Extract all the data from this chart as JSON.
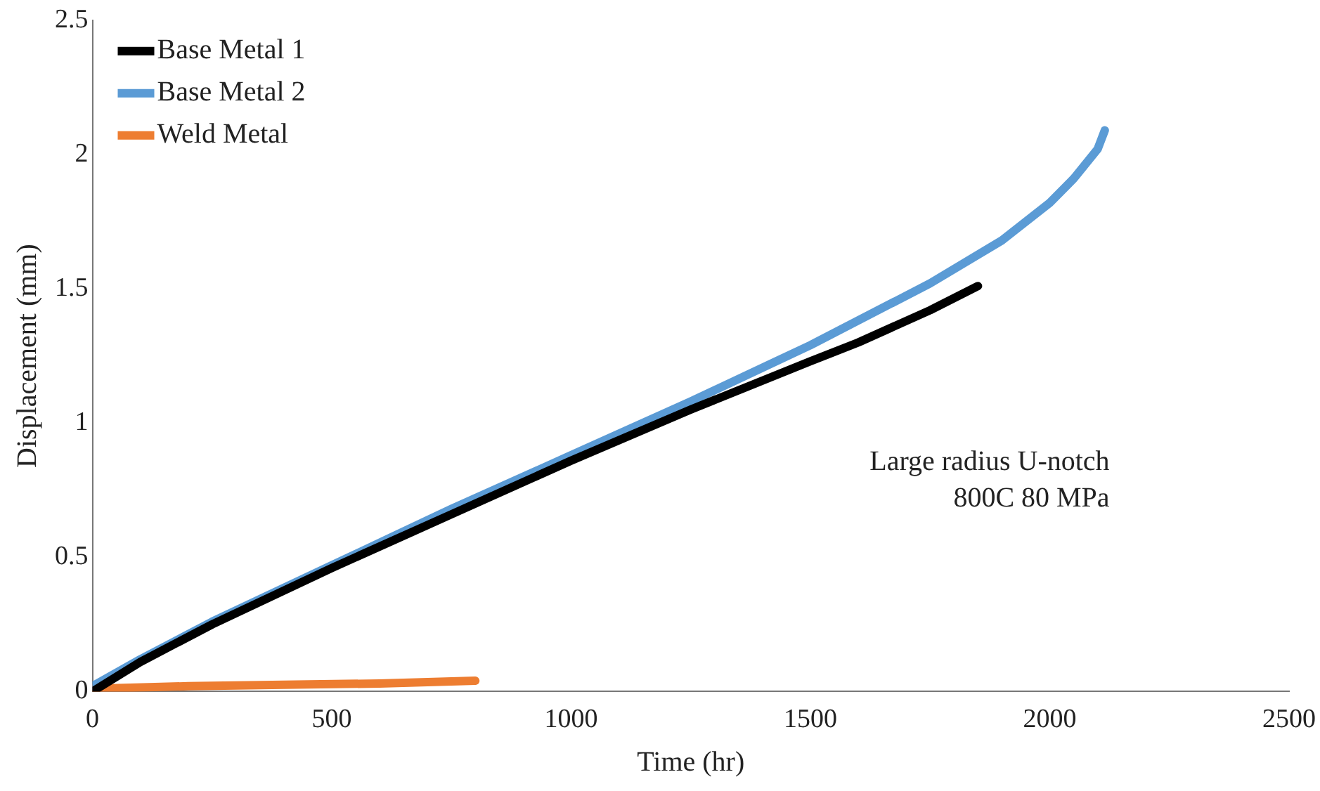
{
  "chart_data": {
    "type": "line",
    "xlabel": "Time (hr)",
    "ylabel": "Displacement (mm)",
    "xlim": [
      0,
      2500
    ],
    "xticks": [
      0,
      500,
      1000,
      1500,
      2000,
      2500
    ],
    "ylim": [
      0,
      2.5
    ],
    "yticks": [
      0,
      0.5,
      1,
      1.5,
      2,
      2.5
    ],
    "grid": false,
    "legend": "top left",
    "marker": "none",
    "line_style": "solid",
    "annotations": [
      "Large radius U-notch\n800C 80 MPa"
    ],
    "series": [
      {
        "name": "Base Metal 1",
        "color": "#000000",
        "x": [
          0,
          100,
          250,
          500,
          750,
          1000,
          1250,
          1500,
          1600,
          1750,
          1850
        ],
        "values": [
          0,
          0.11,
          0.25,
          0.46,
          0.66,
          0.86,
          1.05,
          1.23,
          1.3,
          1.42,
          1.51
        ]
      },
      {
        "name": "Base Metal 2",
        "color": "#5b9bd5",
        "x": [
          0,
          100,
          250,
          500,
          750,
          1000,
          1250,
          1500,
          1750,
          1900,
          2000,
          2050,
          2100,
          2115
        ],
        "values": [
          0.02,
          0.12,
          0.26,
          0.47,
          0.68,
          0.88,
          1.08,
          1.29,
          1.52,
          1.68,
          1.82,
          1.91,
          2.02,
          2.09
        ]
      },
      {
        "name": "Weld Metal",
        "color": "#ed7d31",
        "x": [
          0,
          200,
          400,
          600,
          800
        ],
        "values": [
          0.01,
          0.02,
          0.025,
          0.03,
          0.04
        ]
      }
    ]
  }
}
